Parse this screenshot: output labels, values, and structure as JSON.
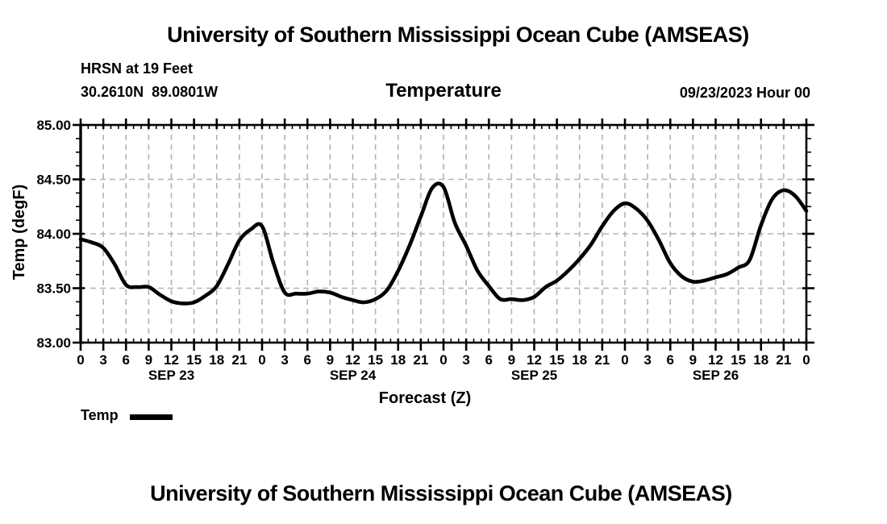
{
  "page": {
    "top_title": "University of Southern Mississippi Ocean Cube (AMSEAS)",
    "bottom_title": "University of Southern Mississippi Ocean Cube (AMSEAS)"
  },
  "header": {
    "station": "HRSN at 19 Feet",
    "coordinates": "30.2610N  89.0801W",
    "plot_title": "Temperature",
    "run_label": "09/23/2023 Hour 00"
  },
  "legend": {
    "label": "Temp",
    "swatch_color": "#000000"
  },
  "colors": {
    "axis": "#000000",
    "grid": "#b3b3b3",
    "series": "#000000",
    "background": "#ffffff"
  },
  "chart_data": {
    "type": "line",
    "title": "Temperature",
    "xlabel": "Forecast (Z)",
    "ylabel": "Temp (degF)",
    "ylim": [
      83.0,
      85.0
    ],
    "y_major_step": 0.5,
    "y_minor_step": 0.125,
    "y_tick_labels": [
      "83.00",
      "83.50",
      "84.00",
      "84.50",
      "85.00"
    ],
    "x_hours_range": [
      0,
      96
    ],
    "x_major_step_hours": 3,
    "x_minor_step_hours": 1,
    "x_tick_label_cycle": [
      "0",
      "3",
      "6",
      "9",
      "12",
      "15",
      "18",
      "21"
    ],
    "day_labels": [
      {
        "label": "SEP 23",
        "center_hour": 12
      },
      {
        "label": "SEP 24",
        "center_hour": 36
      },
      {
        "label": "SEP 25",
        "center_hour": 60
      },
      {
        "label": "SEP 26",
        "center_hour": 84
      }
    ],
    "grid": {
      "show": true,
      "style": "dashed"
    },
    "legend_position": "bottom-left",
    "series": [
      {
        "name": "Temp",
        "color": "#000000",
        "x_start_hour": 0,
        "x_step_hours": 1.5,
        "values": [
          83.95,
          83.92,
          83.87,
          83.72,
          83.53,
          83.51,
          83.51,
          83.44,
          83.38,
          83.36,
          83.37,
          83.43,
          83.52,
          83.72,
          83.94,
          84.04,
          84.07,
          83.73,
          83.46,
          83.45,
          83.45,
          83.47,
          83.46,
          83.42,
          83.39,
          83.37,
          83.4,
          83.48,
          83.66,
          83.89,
          84.16,
          84.42,
          84.43,
          84.1,
          83.89,
          83.66,
          83.52,
          83.4,
          83.4,
          83.39,
          83.42,
          83.51,
          83.57,
          83.66,
          83.77,
          83.9,
          84.07,
          84.21,
          84.28,
          84.23,
          84.12,
          83.94,
          83.73,
          83.61,
          83.56,
          83.57,
          83.6,
          83.63,
          83.69,
          83.76,
          84.08,
          84.32,
          84.4,
          84.35,
          84.21
        ]
      }
    ]
  }
}
